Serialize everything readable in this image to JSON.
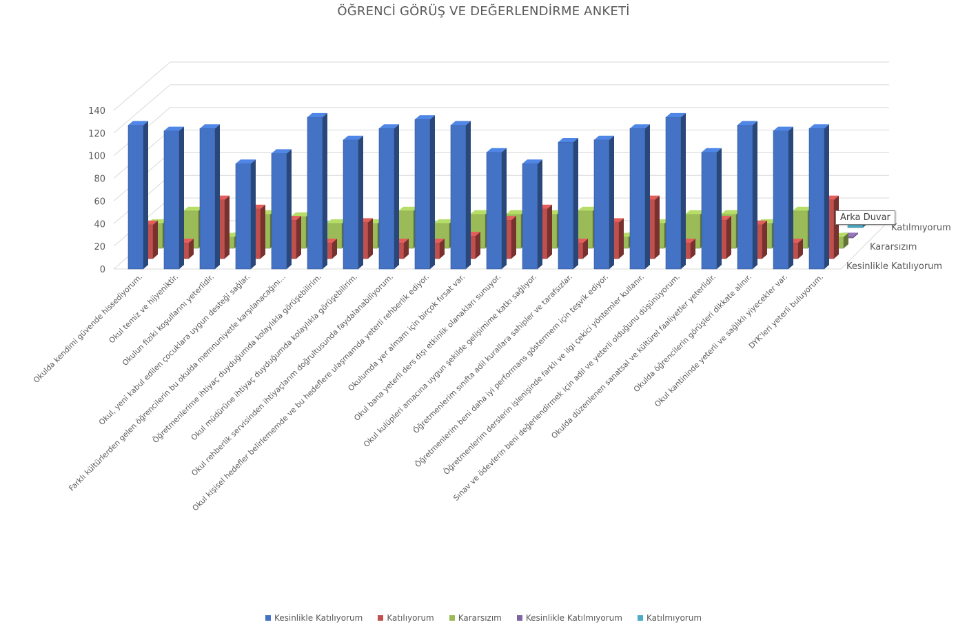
{
  "chart_data": {
    "type": "bar",
    "title": "ÖĞRENCİ GÖRÜŞ VE DEĞERLENDİRME ANKETİ",
    "ylim": [
      0,
      140
    ],
    "yticks": [
      0,
      20,
      40,
      60,
      80,
      100,
      120,
      140
    ],
    "grid": true,
    "legend_position": "bottom",
    "categories": [
      "Okulda kendimi güvende hissediyorum.",
      "Okul temiz ve hijyeniktir.",
      "Okulun fiziki koşullarını yeterlidir.",
      "Okul, yeni kabul edilen çocuklara uygun desteği sağlar.",
      "Farklı kültürlerden gelen öğrencilerin bu okulda memnuniyetle karşılanacağını...",
      "Öğretmenlerime ihtiyaç duyduğumda kolaylıkla görüşebilirim.",
      "Okul müdürüne ihtiyaç duyduğumda kolaylıkla görüşebilirim.",
      "Okul rehberlik servisinden ihtiyaçlarım doğrultusunda faydalanabiliyorum.",
      "Okul kişisel hedefler belirlememde ve bu hedeflere ulaşmamda yeterli rehberlik ediyor.",
      "Okulumda yer almam için birçok fırsat var.",
      "Okul bana yeterli ders dışı etkinlik olanakları sunuyor.",
      "Okul kulüpleri amacına uygun şekilde gelişimime katkı sağlıyor.",
      "Öğretmenlerim sınıfta adil kurallara sahipler ve tarafsızlar.",
      "Öğretmenlerim beni daha iyi performans göstermem için teşvik ediyor.",
      "Öğretmenlerim derslerin işlenişinde farklı ve ilgi çekici yöntemler kullanır.",
      "Sınav ve ödevlerin beni değerlendirmek için adil ve yeterli olduğunu düşünüyorum.",
      "Okulda düzenlenen sanatsal ve kültürel faaliyetler yeterlidir.",
      "Okulda öğrencilerin görüşleri dikkate alınır.",
      "Okul kantininde yeterli ve sağlıklı yiyecekler var.",
      "DYK'leri yeterli buluyorum."
    ],
    "series": [
      {
        "name": "Kesinlikle Katılıyorum",
        "color": "#4472C4",
        "values": [
          127,
          122,
          124,
          93,
          102,
          134,
          114,
          124,
          132,
          127,
          103,
          93,
          112,
          114,
          124,
          134,
          103,
          127,
          122,
          124
        ]
      },
      {
        "name": "Katılıyorum",
        "color": "#C0504D",
        "values": [
          30,
          14,
          52,
          44,
          34,
          14,
          32,
          14,
          14,
          20,
          34,
          44,
          14,
          32,
          52,
          14,
          34,
          30,
          14,
          52
        ]
      },
      {
        "name": "Kararsızım",
        "color": "#9BBB59",
        "values": [
          22,
          33,
          10,
          30,
          28,
          22,
          22,
          33,
          22,
          30,
          30,
          30,
          33,
          10,
          22,
          30,
          30,
          22,
          33,
          10
        ]
      },
      {
        "name": "Kesinlikle Katılmıyorum",
        "color": "#8064A2",
        "values": [
          1,
          1,
          1,
          1,
          1,
          1,
          1,
          1,
          1,
          1,
          1,
          1,
          1,
          1,
          1,
          1,
          1,
          1,
          1,
          1
        ]
      },
      {
        "name": "Katılmıyorum",
        "color": "#4BACC6",
        "values": [
          2,
          2,
          2,
          2,
          2,
          2,
          2,
          2,
          2,
          2,
          2,
          2,
          2,
          2,
          2,
          2,
          2,
          2,
          2,
          2
        ]
      }
    ],
    "depth_axis_labels": [
      "Katılmıyorum",
      "Kararsızım",
      "Kesinlikle Katılıyorum"
    ],
    "tooltip": "Arka Duvar"
  }
}
